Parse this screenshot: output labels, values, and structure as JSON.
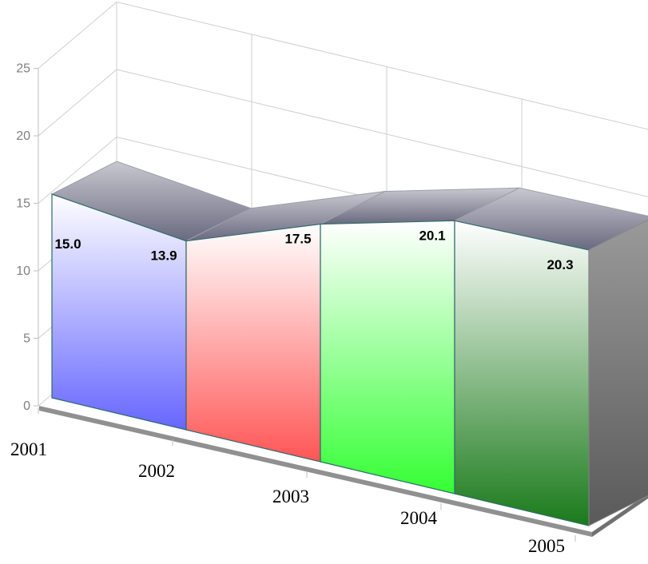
{
  "chart_data": {
    "type": "area",
    "categories": [
      "2001",
      "2002",
      "2003",
      "2004",
      "2005"
    ],
    "values": [
      15.0,
      13.9,
      17.5,
      20.1,
      20.3
    ],
    "data_labels": [
      "15.0",
      "13.9",
      "17.5",
      "20.1",
      "20.3"
    ],
    "ylim": [
      0,
      25
    ],
    "yticks": [
      "0",
      "5",
      "10",
      "15",
      "20",
      "25"
    ],
    "grid": true,
    "segment_colors": [
      "#6666ff",
      "#ff5555",
      "#33ff33",
      "#1a7a1a",
      "#3a3a55"
    ],
    "top_face_color": "#6a6a80",
    "side_face_color": "#5a5a5a",
    "floor_color": "#909090"
  }
}
